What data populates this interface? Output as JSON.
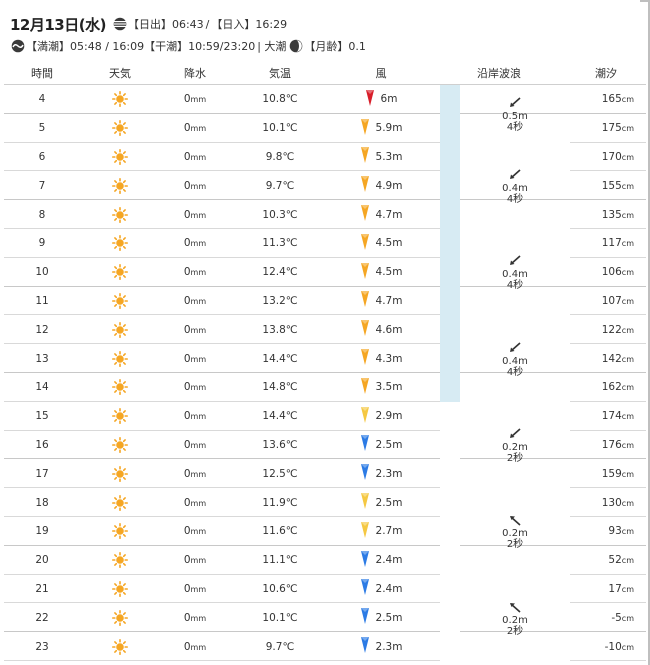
{
  "header": {
    "date": "12月13日(水)",
    "sunrise_label": "【日出】",
    "sunrise": "06:43",
    "slash": "/",
    "sunset_label": "【日入】",
    "sunset": "16:29",
    "high_tide_label": "【満潮】",
    "high_tide": "05:48 / 16:09",
    "low_tide_label": "【干潮】",
    "low_tide": "10:59/23:20",
    "tide_type": "| 大潮",
    "moon_age_label": "【月齢】",
    "moon_age": "0.1"
  },
  "columns": [
    "時間",
    "天気",
    "降水",
    "気温",
    "風",
    "沿岸波浪",
    "潮汐"
  ],
  "rows": [
    {
      "hour": "4",
      "rain": "0",
      "temp": "10.8℃",
      "wind": "6m",
      "tide": "165",
      "arrow_color": "#d81e2a"
    },
    {
      "hour": "5",
      "rain": "0",
      "temp": "10.1℃",
      "wind": "5.9m",
      "tide": "175",
      "arrow_color": "#f5a623"
    },
    {
      "hour": "6",
      "rain": "0",
      "temp": "9.8℃",
      "wind": "5.3m",
      "tide": "170",
      "arrow_color": "#f5a623"
    },
    {
      "hour": "7",
      "rain": "0",
      "temp": "9.7℃",
      "wind": "4.9m",
      "tide": "155",
      "arrow_color": "#f5a623"
    },
    {
      "hour": "8",
      "rain": "0",
      "temp": "10.3℃",
      "wind": "4.7m",
      "tide": "135",
      "arrow_color": "#f5a623"
    },
    {
      "hour": "9",
      "rain": "0",
      "temp": "11.3℃",
      "wind": "4.5m",
      "tide": "117",
      "arrow_color": "#f5a623"
    },
    {
      "hour": "10",
      "rain": "0",
      "temp": "12.4℃",
      "wind": "4.5m",
      "tide": "106",
      "arrow_color": "#f5a623"
    },
    {
      "hour": "11",
      "rain": "0",
      "temp": "13.2℃",
      "wind": "4.7m",
      "tide": "107",
      "arrow_color": "#f5a623"
    },
    {
      "hour": "12",
      "rain": "0",
      "temp": "13.8℃",
      "wind": "4.6m",
      "tide": "122",
      "arrow_color": "#f5a623"
    },
    {
      "hour": "13",
      "rain": "0",
      "temp": "14.4℃",
      "wind": "4.3m",
      "tide": "142",
      "arrow_color": "#f5a623"
    },
    {
      "hour": "14",
      "rain": "0",
      "temp": "14.8℃",
      "wind": "3.5m",
      "tide": "162",
      "arrow_color": "#f5a623"
    },
    {
      "hour": "15",
      "rain": "0",
      "temp": "14.4℃",
      "wind": "2.9m",
      "tide": "174",
      "arrow_color": "#f5c842"
    },
    {
      "hour": "16",
      "rain": "0",
      "temp": "13.6℃",
      "wind": "2.5m",
      "tide": "176",
      "arrow_color": "#2c7be5"
    },
    {
      "hour": "17",
      "rain": "0",
      "temp": "12.5℃",
      "wind": "2.3m",
      "tide": "159",
      "arrow_color": "#2c7be5"
    },
    {
      "hour": "18",
      "rain": "0",
      "temp": "11.9℃",
      "wind": "2.5m",
      "tide": "130",
      "arrow_color": "#f5c842"
    },
    {
      "hour": "19",
      "rain": "0",
      "temp": "11.6℃",
      "wind": "2.7m",
      "tide": "93",
      "arrow_color": "#f5c842"
    },
    {
      "hour": "20",
      "rain": "0",
      "temp": "11.1℃",
      "wind": "2.4m",
      "tide": "52",
      "arrow_color": "#2c7be5"
    },
    {
      "hour": "21",
      "rain": "0",
      "temp": "10.6℃",
      "wind": "2.4m",
      "tide": "17",
      "arrow_color": "#2c7be5"
    },
    {
      "hour": "22",
      "rain": "0",
      "temp": "10.1℃",
      "wind": "2.5m",
      "tide": "-5",
      "arrow_color": "#2c7be5"
    },
    {
      "hour": "23",
      "rain": "0",
      "temp": "9.7℃",
      "wind": "2.3m",
      "tide": "-10",
      "arrow_color": "#2c7be5"
    }
  ],
  "units": {
    "rain": "mm",
    "tide": "cm"
  },
  "waves": [
    {
      "height": "0.5m",
      "period": "4秒"
    },
    {
      "height": "0.4m",
      "period": "4秒"
    },
    {
      "height": "0.4m",
      "period": "4秒"
    },
    {
      "height": "0.4m",
      "period": "4秒"
    },
    {
      "height": "0.2m",
      "period": "2秒"
    },
    {
      "height": "0.2m",
      "period": "2秒"
    },
    {
      "height": "0.2m",
      "period": "2秒"
    }
  ],
  "colors": {
    "sun": "#f5a623",
    "wave_strip": "#d7ebf3",
    "wind_strong": "#d81e2a",
    "wind_mid": "#f5a623",
    "wind_light": "#f5c842",
    "wind_calm": "#2c7be5"
  },
  "icons": {
    "weather": "sun-icon",
    "sunrise": "sunrise-icon",
    "tide": "tide-icon",
    "moon": "moon-icon",
    "wave_dir_first": "arrow-down-left-icon",
    "wave_dir_later": "arrow-up-left-icon"
  }
}
